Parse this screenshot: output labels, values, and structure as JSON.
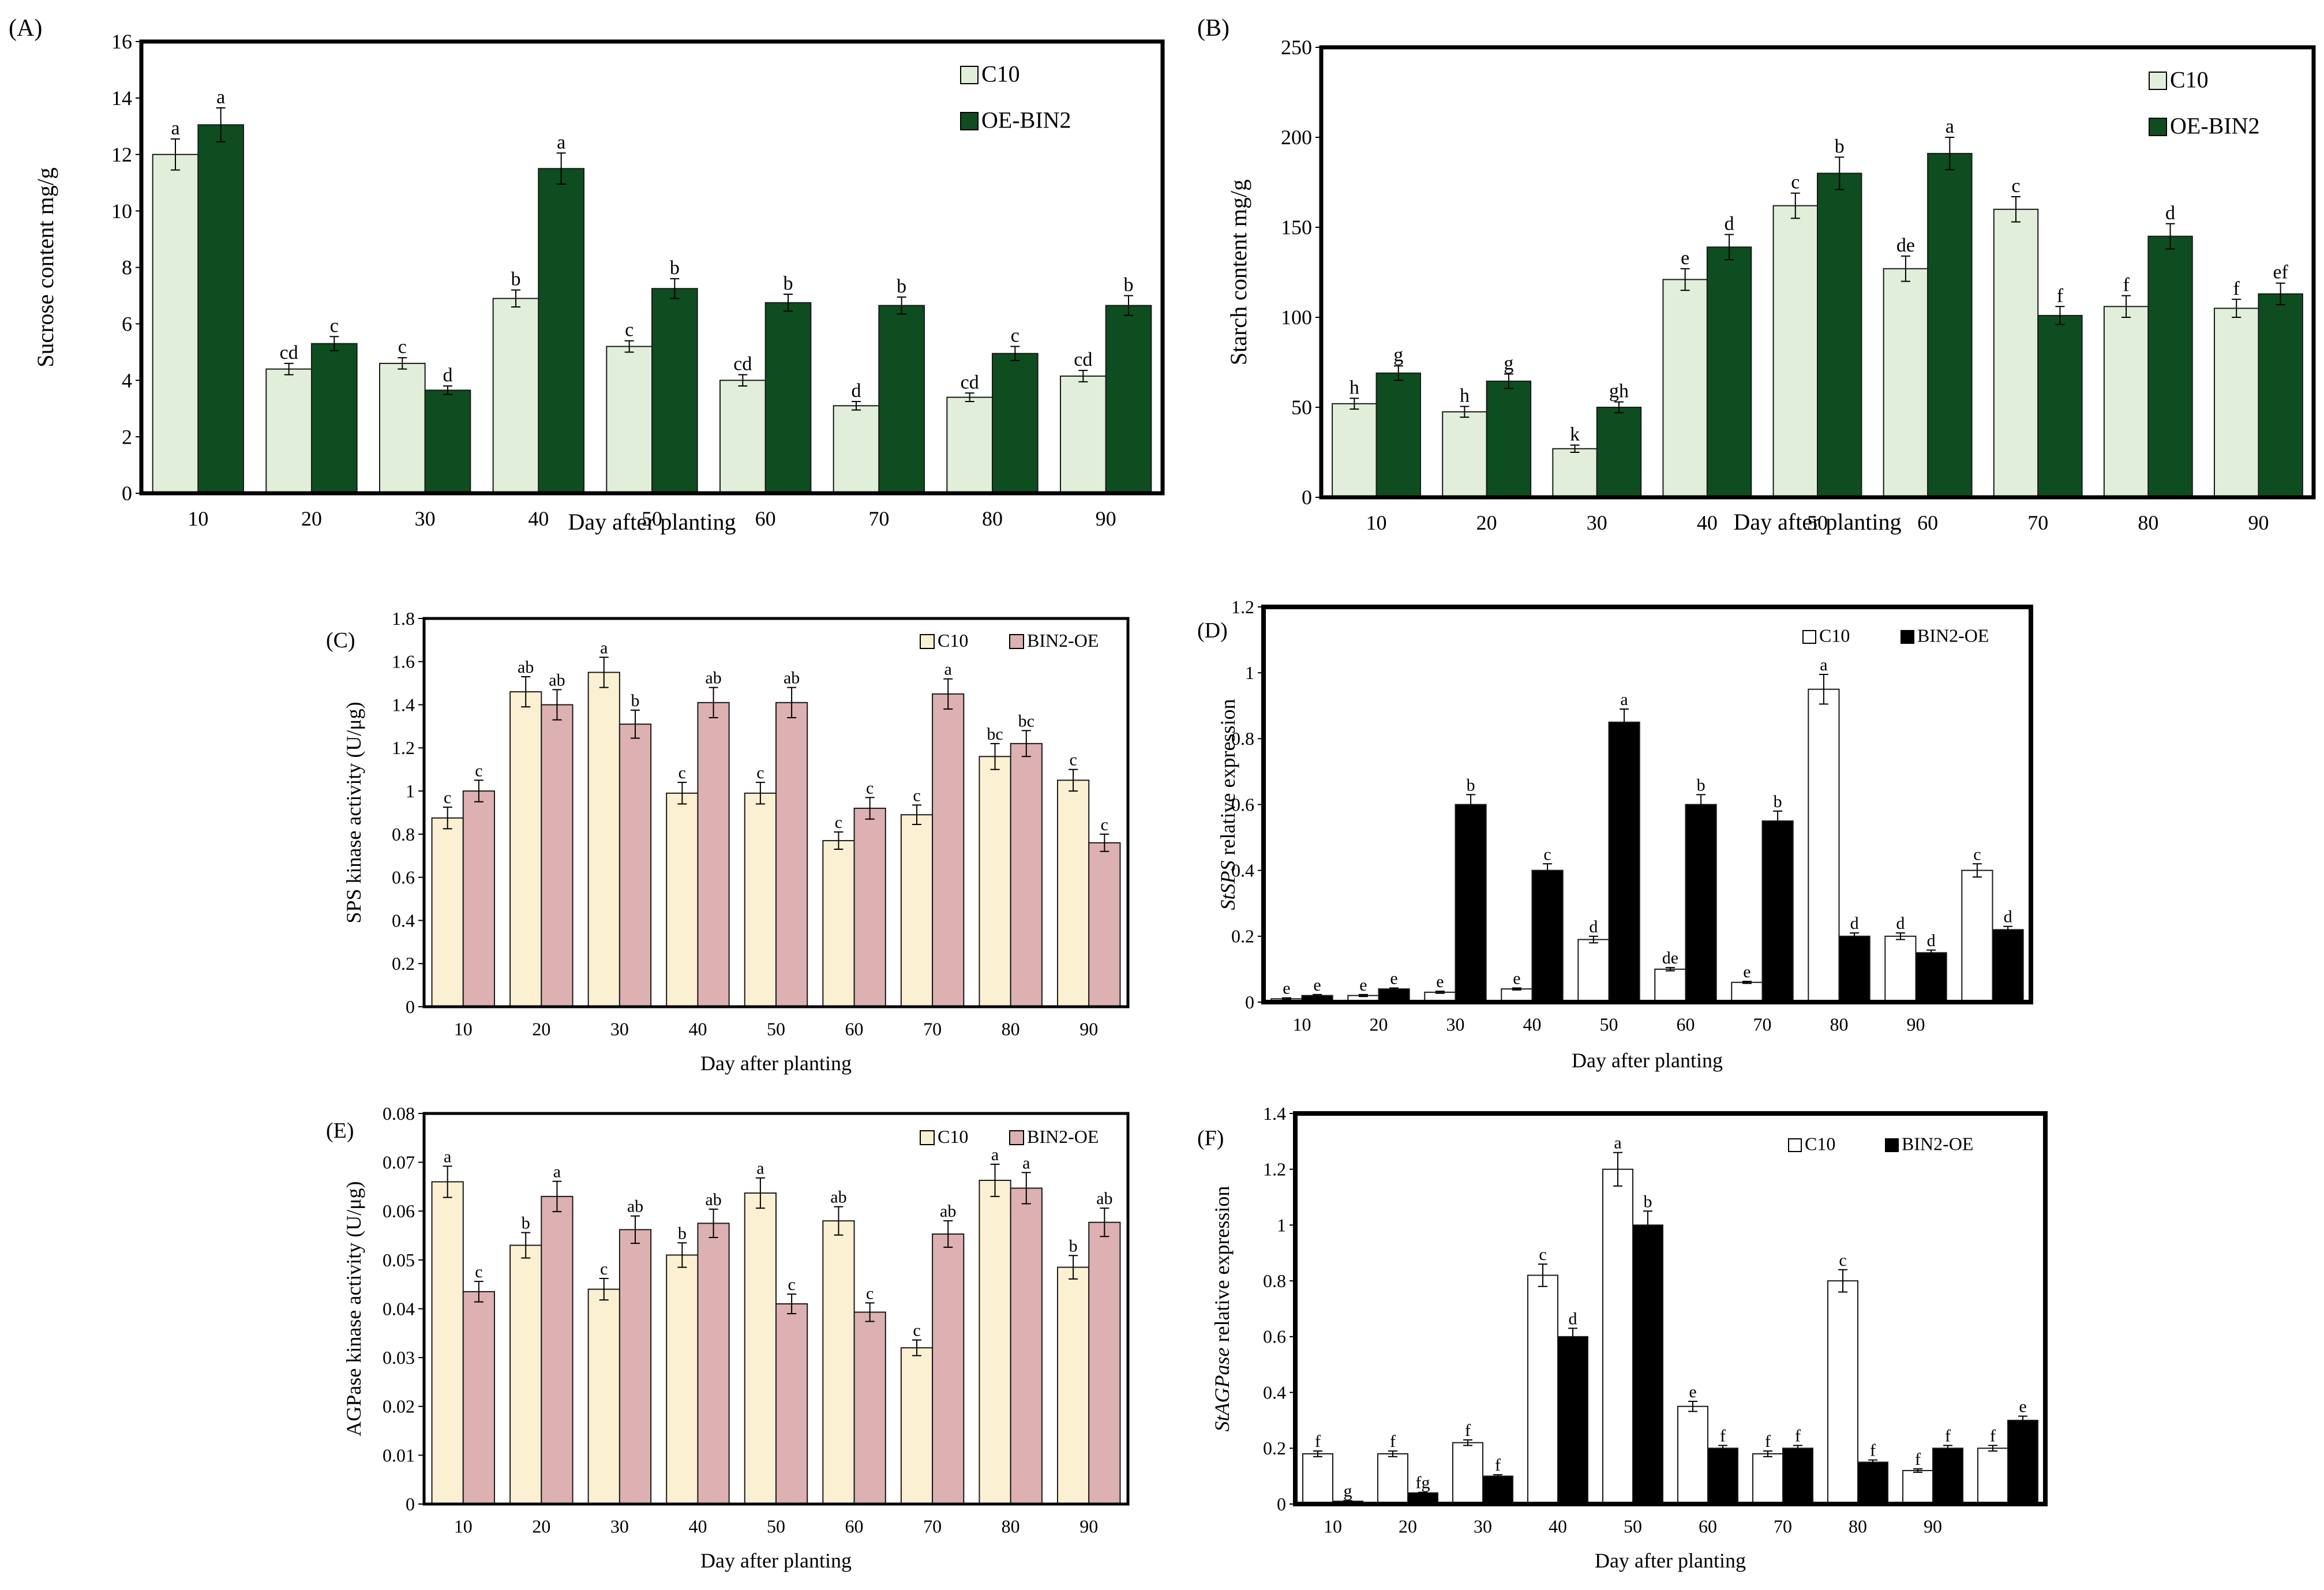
{
  "legend_labels": [
    "C10",
    "OE-BIN2",
    "BIN2-OE"
  ],
  "chart_data": [
    {
      "panel": "(A)",
      "type": "bar",
      "ylabel": "Sucrose content mg/g",
      "xlabel": "Day after planting",
      "ylim": [
        0,
        16
      ],
      "yticks": [
        0,
        2,
        4,
        6,
        8,
        10,
        12,
        14,
        16
      ],
      "categories": [
        "10",
        "20",
        "30",
        "40",
        "50",
        "60",
        "70",
        "80",
        "90"
      ],
      "legend_position": "top-right",
      "series": [
        {
          "name": "C10",
          "color": "#e1efda",
          "values": [
            12.0,
            4.4,
            4.6,
            6.9,
            5.2,
            4.0,
            3.1,
            3.4,
            4.15
          ],
          "errors": [
            0.55,
            0.2,
            0.2,
            0.3,
            0.2,
            0.2,
            0.15,
            0.15,
            0.2
          ],
          "letters": [
            "a",
            "cd",
            "c",
            "b",
            "c",
            "cd",
            "d",
            "cd",
            "cd"
          ]
        },
        {
          "name": "OE-BIN2",
          "color": "#0e4d1f",
          "values": [
            13.05,
            5.3,
            3.65,
            11.5,
            7.25,
            6.75,
            6.65,
            4.95,
            6.65
          ],
          "errors": [
            0.6,
            0.25,
            0.15,
            0.55,
            0.35,
            0.3,
            0.3,
            0.25,
            0.35
          ],
          "letters": [
            "a",
            "c",
            "d",
            "a",
            "b",
            "b",
            "b",
            "c",
            "b"
          ]
        }
      ]
    },
    {
      "panel": "(B)",
      "type": "bar",
      "ylabel": "Starch content mg/g",
      "xlabel": "Day after planting",
      "ylim": [
        0,
        250
      ],
      "yticks": [
        0,
        50,
        100,
        150,
        200,
        250
      ],
      "categories": [
        "10",
        "20",
        "30",
        "40",
        "50",
        "60",
        "70",
        "80",
        "90"
      ],
      "legend_position": "top-right",
      "series": [
        {
          "name": "C10",
          "color": "#e1efda",
          "values": [
            52,
            47.5,
            27,
            121,
            162,
            127,
            160,
            106,
            105
          ],
          "errors": [
            3,
            3,
            2,
            6,
            7,
            7,
            7,
            6,
            5
          ],
          "letters": [
            "h",
            "h",
            "k",
            "e",
            "c",
            "de",
            "c",
            "f",
            "f"
          ]
        },
        {
          "name": "OE-BIN2",
          "color": "#0e4d1f",
          "values": [
            69,
            64.5,
            50,
            139,
            180,
            191,
            101,
            145,
            113
          ],
          "errors": [
            4,
            4,
            3,
            7,
            9,
            9,
            5,
            7,
            6
          ],
          "letters": [
            "g",
            "g",
            "gh",
            "d",
            "b",
            "a",
            "f",
            "d",
            "ef"
          ]
        }
      ]
    },
    {
      "panel": "(C)",
      "type": "bar",
      "ylabel": "SPS kinase activity (U/μg)",
      "xlabel": "Day after planting",
      "ylim": [
        0,
        1.8
      ],
      "yticks": [
        "0",
        "0.2",
        "0.4",
        "0.6",
        "0.8",
        "1",
        "1.2",
        "1.4",
        "1.6",
        "1.8"
      ],
      "categories": [
        "10",
        "20",
        "30",
        "40",
        "50",
        "60",
        "70",
        "80",
        "90"
      ],
      "legend_position": "top-right",
      "series": [
        {
          "name": "C10",
          "color": "#fbf0d2",
          "values": [
            0.875,
            1.46,
            1.55,
            0.99,
            0.99,
            0.77,
            0.89,
            1.16,
            1.05
          ],
          "errors": [
            0.05,
            0.07,
            0.07,
            0.05,
            0.05,
            0.04,
            0.045,
            0.06,
            0.05
          ],
          "letters": [
            "c",
            "ab",
            "a",
            "c",
            "c",
            "c",
            "c",
            "bc",
            "c"
          ]
        },
        {
          "name": "BIN2-OE",
          "color": "#ddb1b1",
          "values": [
            1.0,
            1.4,
            1.31,
            1.41,
            1.41,
            0.92,
            1.45,
            1.22,
            0.76
          ],
          "errors": [
            0.05,
            0.07,
            0.065,
            0.07,
            0.07,
            0.05,
            0.07,
            0.06,
            0.04
          ],
          "letters": [
            "c",
            "ab",
            "b",
            "ab",
            "ab",
            "c",
            "a",
            "bc",
            "c"
          ]
        }
      ]
    },
    {
      "panel": "(D)",
      "type": "bar",
      "ylabel_italic": "StSPS",
      "ylabel_rest": "relative  expression",
      "xlabel": "Day after planting",
      "ylim": [
        0,
        1.2
      ],
      "yticks": [
        "0",
        "0.2",
        "0.4",
        "0.6",
        "0.8",
        "1",
        "1.2"
      ],
      "categories": [
        "10",
        "20",
        "30",
        "40",
        "50",
        "60",
        "70",
        "80",
        "90",
        ""
      ],
      "legend_position": "top-right",
      "series": [
        {
          "name": "C10",
          "color": "#ffffff",
          "values": [
            0.01,
            0.02,
            0.03,
            0.04,
            0.19,
            0.1,
            0.06,
            0.95,
            0.2,
            0.4
          ],
          "errors": [
            0.003,
            0.003,
            0.003,
            0.003,
            0.01,
            0.005,
            0.003,
            0.045,
            0.01,
            0.02
          ],
          "letters": [
            "e",
            "e",
            "e",
            "e",
            "d",
            "de",
            "e",
            "a",
            "d",
            "c"
          ]
        },
        {
          "name": "BIN2-OE",
          "color": "#000000",
          "values": [
            0.02,
            0.04,
            0.6,
            0.4,
            0.85,
            0.6,
            0.55,
            0.2,
            0.15,
            0.22
          ],
          "errors": [
            0.003,
            0.003,
            0.03,
            0.02,
            0.04,
            0.03,
            0.03,
            0.01,
            0.008,
            0.01
          ],
          "letters": [
            "e",
            "e",
            "b",
            "c",
            "a",
            "b",
            "b",
            "d",
            "d",
            "d"
          ]
        }
      ]
    },
    {
      "panel": "(E)",
      "type": "bar",
      "ylabel": "AGPase kinase activity (U/μg)",
      "xlabel": "Day after planting",
      "ylim": [
        0,
        0.08
      ],
      "yticks": [
        "0",
        "0.01",
        "0.02",
        "0.03",
        "0.04",
        "0.05",
        "0.06",
        "0.07",
        "0.08"
      ],
      "categories": [
        "10",
        "20",
        "30",
        "40",
        "50",
        "60",
        "70",
        "80",
        "90"
      ],
      "legend_position": "top-right",
      "series": [
        {
          "name": "C10",
          "color": "#fbf0d2",
          "values": [
            0.066,
            0.053,
            0.044,
            0.051,
            0.0637,
            0.058,
            0.032,
            0.0663,
            0.0485
          ],
          "errors": [
            0.0032,
            0.0026,
            0.0022,
            0.0025,
            0.0031,
            0.0029,
            0.0016,
            0.0033,
            0.0024
          ],
          "letters": [
            "a",
            "b",
            "c",
            "b",
            "a",
            "ab",
            "c",
            "a",
            "b"
          ]
        },
        {
          "name": "BIN2-OE",
          "color": "#ddb1b1",
          "values": [
            0.0435,
            0.063,
            0.0562,
            0.0575,
            0.041,
            0.0393,
            0.0553,
            0.0647,
            0.0577
          ],
          "errors": [
            0.0021,
            0.0031,
            0.0028,
            0.0029,
            0.002,
            0.0019,
            0.0027,
            0.0032,
            0.0029
          ],
          "letters": [
            "c",
            "a",
            "ab",
            "ab",
            "c",
            "c",
            "ab",
            "a",
            "ab"
          ]
        }
      ]
    },
    {
      "panel": "(F)",
      "type": "bar",
      "ylabel_italic": "StAGPase",
      "ylabel_rest": "relative  expression",
      "xlabel": "Day after planting",
      "ylim": [
        0,
        1.4
      ],
      "yticks": [
        "0",
        "0.2",
        "0.4",
        "0.6",
        "0.8",
        "1",
        "1.2",
        "1.4"
      ],
      "categories": [
        "10",
        "20",
        "30",
        "40",
        "50",
        "60",
        "70",
        "80",
        "90",
        ""
      ],
      "legend_position": "top-right",
      "series": [
        {
          "name": "C10",
          "color": "#ffffff",
          "values": [
            0.18,
            0.18,
            0.22,
            0.82,
            1.2,
            0.35,
            0.18,
            0.8,
            0.12,
            0.2
          ],
          "errors": [
            0.01,
            0.01,
            0.01,
            0.04,
            0.06,
            0.018,
            0.01,
            0.04,
            0.006,
            0.01
          ],
          "letters": [
            "f",
            "f",
            "f",
            "c",
            "a",
            "e",
            "f",
            "c",
            "f",
            "f"
          ]
        },
        {
          "name": "BIN2-OE",
          "color": "#000000",
          "values": [
            0.01,
            0.04,
            0.1,
            0.6,
            1.0,
            0.2,
            0.2,
            0.15,
            0.2,
            0.3
          ],
          "errors": [
            0.002,
            0.002,
            0.005,
            0.03,
            0.05,
            0.01,
            0.01,
            0.008,
            0.01,
            0.015
          ],
          "letters": [
            "g",
            "fg",
            "f",
            "d",
            "b",
            "f",
            "f",
            "f",
            "f",
            "e"
          ]
        }
      ]
    }
  ]
}
